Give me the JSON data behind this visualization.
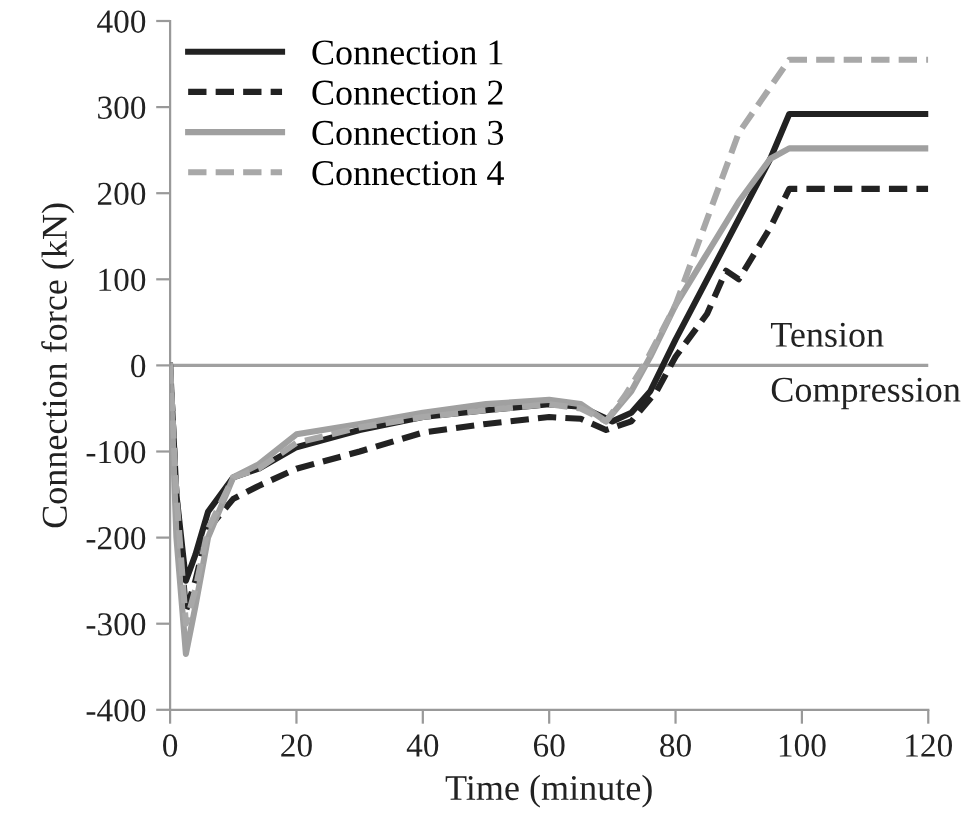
{
  "chart_data": {
    "type": "line",
    "xlabel": "Time (minute)",
    "ylabel": "Connection force (kN)",
    "xlim": [
      0,
      120
    ],
    "xticks": [
      0,
      20,
      40,
      60,
      80,
      100,
      120
    ],
    "ylim": [
      -400,
      400
    ],
    "yticks": [
      -400,
      -300,
      -200,
      -100,
      0,
      100,
      200,
      300,
      400
    ],
    "grid": false,
    "legend": "top left",
    "marker": "none",
    "ref_lines": [
      {
        "axis": "y",
        "value": 0,
        "label": null,
        "color": "#a0a0a0"
      }
    ],
    "annotations": [
      {
        "text": "Tension",
        "x": 95,
        "y": 0
      },
      {
        "text": "Compression",
        "x": 95,
        "y": 0
      }
    ],
    "series": [
      {
        "name": "Connection 1",
        "color": "#222222",
        "line_style": "solid",
        "x": [
          0,
          1,
          2.5,
          4,
          6,
          10,
          14,
          20,
          30,
          40,
          50,
          60,
          65,
          70,
          73,
          76,
          80,
          85,
          90,
          95,
          98,
          120
        ],
        "values": [
          0,
          -150,
          -250,
          -220,
          -170,
          -130,
          -120,
          -95,
          -75,
          -60,
          -52,
          -45,
          -48,
          -65,
          -55,
          -30,
          30,
          100,
          170,
          240,
          292,
          292
        ]
      },
      {
        "name": "Connection 2",
        "color": "#222222",
        "line_style": "dashed",
        "x": [
          0,
          1,
          2.5,
          4,
          6,
          10,
          14,
          20,
          30,
          40,
          50,
          60,
          65,
          69,
          73,
          77,
          80,
          85,
          88,
          90,
          95,
          98,
          120
        ],
        "values": [
          0,
          -150,
          -285,
          -250,
          -190,
          -155,
          -140,
          -120,
          -100,
          -78,
          -68,
          -60,
          -62,
          -75,
          -65,
          -30,
          10,
          60,
          110,
          100,
          160,
          205,
          205
        ]
      },
      {
        "name": "Connection 3",
        "color": "#a0a0a0",
        "line_style": "solid",
        "x": [
          0,
          1,
          2.5,
          4,
          6,
          10,
          14,
          20,
          30,
          40,
          50,
          60,
          65,
          69,
          73,
          76,
          80,
          85,
          90,
          95,
          98,
          120
        ],
        "values": [
          0,
          -200,
          -335,
          -280,
          -200,
          -130,
          -115,
          -80,
          -68,
          -55,
          -45,
          -40,
          -45,
          -65,
          -30,
          10,
          70,
          130,
          190,
          240,
          252,
          252
        ]
      },
      {
        "name": "Connection 4",
        "color": "#a8a8a8",
        "line_style": "dashed",
        "x": [
          0,
          1,
          2.5,
          4,
          6,
          10,
          14,
          20,
          30,
          40,
          50,
          60,
          65,
          69,
          72,
          75,
          80,
          85,
          90,
          98,
          120
        ],
        "values": [
          0,
          -150,
          -300,
          -260,
          -190,
          -130,
          -120,
          -90,
          -72,
          -60,
          -52,
          -45,
          -50,
          -65,
          -35,
          0,
          70,
          170,
          270,
          355,
          355
        ]
      }
    ]
  }
}
